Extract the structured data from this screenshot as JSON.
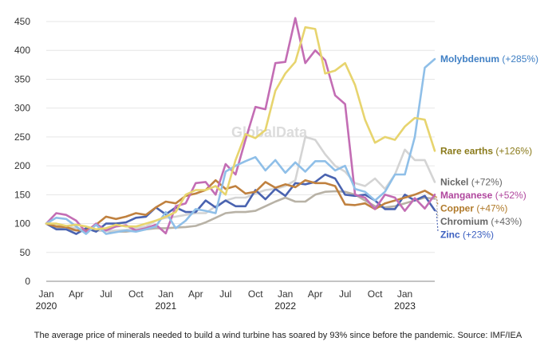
{
  "chart_data": {
    "type": "line",
    "watermark": "GlobalData",
    "caption": "The average price of minerals needed to build a wind turbine has soared by 93% since before the pandemic. Source: IMF/IEA",
    "ylim": [
      0,
      450
    ],
    "yticks": [
      0,
      50,
      100,
      150,
      200,
      250,
      300,
      350,
      400,
      450
    ],
    "grid": true,
    "xlim": [
      0,
      39
    ],
    "xticks": [
      {
        "x": 0,
        "label": "Jan",
        "year": "2020"
      },
      {
        "x": 3,
        "label": "Apr",
        "year": ""
      },
      {
        "x": 6,
        "label": "Jul",
        "year": ""
      },
      {
        "x": 9,
        "label": "Oct",
        "year": ""
      },
      {
        "x": 12,
        "label": "Jan",
        "year": "2021"
      },
      {
        "x": 15,
        "label": "Apr",
        "year": ""
      },
      {
        "x": 18,
        "label": "Jul",
        "year": ""
      },
      {
        "x": 21,
        "label": "Oct",
        "year": ""
      },
      {
        "x": 24,
        "label": "Jan",
        "year": "2022"
      },
      {
        "x": 27,
        "label": "Apr",
        "year": ""
      },
      {
        "x": 30,
        "label": "Jul",
        "year": ""
      },
      {
        "x": 33,
        "label": "Oct",
        "year": ""
      },
      {
        "x": 36,
        "label": "Jan",
        "year": "2023"
      }
    ],
    "series": [
      {
        "name": "Chromium",
        "change": "(+43%)",
        "color": "#b8b2a6",
        "labelColor": "#666666",
        "values": [
          100,
          92,
          90,
          88,
          90,
          88,
          87,
          86,
          86,
          88,
          90,
          92,
          92,
          93,
          94,
          96,
          102,
          110,
          118,
          120,
          120,
          122,
          130,
          138,
          145,
          138,
          138,
          150,
          155,
          156,
          155,
          150,
          140,
          130,
          128,
          130,
          135,
          140,
          145,
          143
        ]
      },
      {
        "name": "Nickel",
        "change": "(+72%)",
        "color": "#d4d4d4",
        "labelColor": "#666666",
        "values": [
          100,
          96,
          95,
          92,
          90,
          88,
          87,
          88,
          89,
          92,
          95,
          105,
          110,
          112,
          115,
          118,
          118,
          130,
          140,
          145,
          145,
          152,
          158,
          160,
          165,
          175,
          250,
          245,
          220,
          200,
          190,
          170,
          165,
          178,
          160,
          185,
          228,
          210,
          210,
          172
        ]
      },
      {
        "name": "Zinc",
        "change": "(+23%)",
        "color": "#4a63b0",
        "labelColor": "#3b5fc0",
        "values": [
          100,
          90,
          90,
          82,
          92,
          86,
          100,
          100,
          102,
          110,
          112,
          128,
          116,
          128,
          120,
          120,
          140,
          128,
          140,
          130,
          130,
          158,
          142,
          160,
          148,
          170,
          168,
          172,
          185,
          178,
          150,
          148,
          150,
          140,
          125,
          125,
          150,
          140,
          148,
          123
        ]
      },
      {
        "name": "Copper",
        "change": "(+47%)",
        "color": "#c0813f",
        "labelColor": "#b07a2a",
        "values": [
          100,
          95,
          94,
          88,
          88,
          98,
          112,
          108,
          112,
          118,
          115,
          128,
          138,
          135,
          148,
          152,
          158,
          175,
          160,
          165,
          152,
          155,
          172,
          162,
          168,
          163,
          175,
          170,
          170,
          165,
          133,
          132,
          135,
          125,
          135,
          140,
          145,
          150,
          157,
          147
        ]
      },
      {
        "name": "Manganese",
        "change": "(+52%)",
        "color": "#c36db4",
        "labelColor": "#b0479e",
        "values": [
          100,
          118,
          115,
          105,
          85,
          100,
          88,
          95,
          97,
          88,
          92,
          98,
          83,
          130,
          135,
          170,
          172,
          150,
          203,
          185,
          245,
          302,
          298,
          378,
          380,
          456,
          378,
          400,
          383,
          322,
          307,
          150,
          145,
          125,
          150,
          145,
          122,
          144,
          126,
          150
        ]
      },
      {
        "name": "Molybdenum",
        "change": "(+285%)",
        "color": "#8fbfe8",
        "labelColor": "#3f7fc4",
        "values": [
          100,
          110,
          108,
          95,
          82,
          98,
          82,
          85,
          88,
          86,
          90,
          95,
          120,
          92,
          105,
          125,
          122,
          118,
          190,
          200,
          208,
          215,
          192,
          210,
          188,
          206,
          190,
          208,
          208,
          192,
          200,
          160,
          155,
          140,
          155,
          185,
          185,
          250,
          370,
          385
        ]
      },
      {
        "name": "Rare earths",
        "change": "(+126%)",
        "color": "#e7d46e",
        "labelColor": "#8a7a1a",
        "values": [
          100,
          100,
          96,
          98,
          95,
          90,
          92,
          98,
          95,
          95,
          100,
          105,
          112,
          120,
          150,
          158,
          158,
          165,
          150,
          210,
          255,
          248,
          262,
          330,
          360,
          380,
          440,
          437,
          360,
          365,
          378,
          340,
          280,
          240,
          250,
          245,
          268,
          283,
          280,
          226
        ]
      }
    ],
    "label_order": [
      "Molybdenum",
      "Rare earths",
      "Nickel",
      "Manganese",
      "Copper",
      "Chromium",
      "Zinc"
    ]
  }
}
